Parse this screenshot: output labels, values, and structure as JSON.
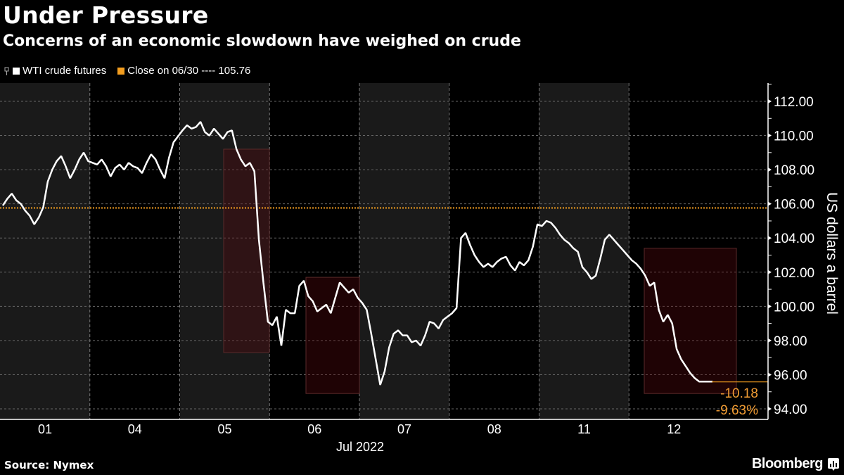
{
  "header": {
    "title": "Under Pressure",
    "subtitle": "Concerns of an economic slowdown have weighed on crude"
  },
  "legend": {
    "items": [
      {
        "label": "WTI crude futures",
        "color": "#ffffff",
        "icon": "candlestick-icon"
      },
      {
        "label": "Close on 06/30 ---- 105.76",
        "color": "#f29d1f"
      }
    ]
  },
  "footer": {
    "source": "Source: Nymex",
    "brand": "Bloomberg"
  },
  "chart_data": {
    "type": "line",
    "title": "Under Pressure",
    "subtitle": "Concerns of an economic slowdown have weighed on crude",
    "xlabel": "Jul 2022",
    "ylabel": "US dollars a barrel",
    "ylim": [
      93.5,
      112.8
    ],
    "y_ticks": [
      "94.00",
      "96.00",
      "98.00",
      "100.00",
      "102.00",
      "104.00",
      "106.00",
      "108.00",
      "110.00",
      "112.00"
    ],
    "x_ticks": [
      "01",
      "04",
      "05",
      "06",
      "07",
      "08",
      "11",
      "12"
    ],
    "grid": true,
    "legend_position": "top-left",
    "reference_line": {
      "label": "Close on 06/30",
      "value": 105.76,
      "color": "#f29d1f"
    },
    "annotations": [
      {
        "text": "-10.18",
        "color": "#f29d34"
      },
      {
        "text": "-9.63%",
        "color": "#f29d34"
      }
    ],
    "highlight_boxes": [
      {
        "day": "05",
        "from": 109.2,
        "to": 97.3
      },
      {
        "day": "06",
        "from": 101.7,
        "to": 94.9
      },
      {
        "day": "12",
        "from": 103.4,
        "to": 94.9
      }
    ],
    "series": [
      {
        "name": "WTI crude futures",
        "x": [
          0,
          0.05,
          0.1,
          0.15,
          0.2,
          0.25,
          0.3,
          0.35,
          0.4,
          0.45,
          0.5,
          0.55,
          0.6,
          0.65,
          0.7,
          0.75,
          0.8,
          0.85,
          0.9,
          0.95,
          1.0,
          1.05,
          1.1,
          1.15,
          1.2,
          1.25,
          1.3,
          1.35,
          1.4,
          1.45,
          1.5,
          1.55,
          1.6,
          1.65,
          1.7,
          1.75,
          1.8,
          1.85,
          1.9,
          2.0,
          2.05,
          2.1,
          2.15,
          2.2,
          2.25,
          2.3,
          2.35,
          2.4,
          2.45,
          2.5,
          2.55,
          2.6,
          2.65,
          2.7,
          2.75,
          2.8,
          2.85,
          2.9,
          2.95,
          3.0,
          3.05,
          3.1,
          3.15,
          3.2,
          3.25,
          3.3,
          3.35,
          3.4,
          3.45,
          3.5,
          3.55,
          3.6,
          3.65,
          3.7,
          3.75,
          3.8,
          3.85,
          3.9,
          3.95,
          4.0,
          4.05,
          4.1,
          4.15,
          4.2,
          4.25,
          4.3,
          4.35,
          4.4,
          4.45,
          4.5,
          4.55,
          4.6,
          4.65,
          4.7,
          4.75,
          4.8,
          4.85,
          4.9,
          4.95,
          5.0,
          5.05,
          5.1,
          5.15,
          5.2,
          5.25,
          5.3,
          5.35,
          5.4,
          5.45,
          5.5,
          5.55,
          5.6,
          5.65,
          5.7,
          5.75,
          5.8,
          5.85,
          5.9,
          5.95,
          6.0,
          6.05,
          6.1,
          6.15,
          6.2,
          6.25,
          6.3,
          6.35,
          6.4,
          6.45,
          6.5,
          6.55,
          6.6,
          6.65,
          6.7,
          6.75,
          6.8,
          6.85,
          6.9,
          6.95,
          7.0,
          7.05,
          7.1,
          7.15,
          7.2,
          7.25,
          7.3,
          7.35,
          7.4,
          7.45,
          7.5,
          7.55,
          7.6,
          7.65,
          7.7,
          7.75,
          7.8,
          7.85,
          7.9
        ],
        "values": [
          105.9,
          106.3,
          106.6,
          106.2,
          106.0,
          105.6,
          105.3,
          104.8,
          105.2,
          105.8,
          107.3,
          108.0,
          108.5,
          108.8,
          108.2,
          107.5,
          108.0,
          108.6,
          109.0,
          108.5,
          108.4,
          108.3,
          108.6,
          108.2,
          107.6,
          108.1,
          108.3,
          108.0,
          108.4,
          108.2,
          108.1,
          107.8,
          108.4,
          108.9,
          108.6,
          108.0,
          107.5,
          108.7,
          109.6,
          110.3,
          110.6,
          110.4,
          110.5,
          110.8,
          110.2,
          110.0,
          110.4,
          110.1,
          109.8,
          110.2,
          110.3,
          109.2,
          108.6,
          108.2,
          108.4,
          107.9,
          103.9,
          101.4,
          99.1,
          98.9,
          99.4,
          97.7,
          99.8,
          99.6,
          99.6,
          101.2,
          101.5,
          100.6,
          100.3,
          99.7,
          99.9,
          100.1,
          99.6,
          100.5,
          101.4,
          101.1,
          100.8,
          101.0,
          100.5,
          100.2,
          99.8,
          98.4,
          96.9,
          95.4,
          96.2,
          97.6,
          98.4,
          98.6,
          98.3,
          98.3,
          97.9,
          98.0,
          97.7,
          98.3,
          99.1,
          99.0,
          98.7,
          99.2,
          99.4,
          99.6,
          99.9,
          104.0,
          104.3,
          103.6,
          103.0,
          102.6,
          102.3,
          102.5,
          102.3,
          102.6,
          102.8,
          102.9,
          102.4,
          102.1,
          102.6,
          102.4,
          102.7,
          103.5,
          104.8,
          104.7,
          105.0,
          104.9,
          104.6,
          104.2,
          103.9,
          103.7,
          103.4,
          103.2,
          102.3,
          102.0,
          101.6,
          101.8,
          102.8,
          103.9,
          104.2,
          103.9,
          103.6,
          103.3,
          103.0,
          102.7,
          102.5,
          102.2,
          101.8,
          101.2,
          101.4,
          99.8,
          99.1,
          99.5,
          99.0,
          97.5,
          96.9,
          96.5,
          96.1,
          95.8,
          95.6,
          95.6,
          95.6,
          95.6
        ]
      }
    ],
    "last_value": 95.58
  }
}
